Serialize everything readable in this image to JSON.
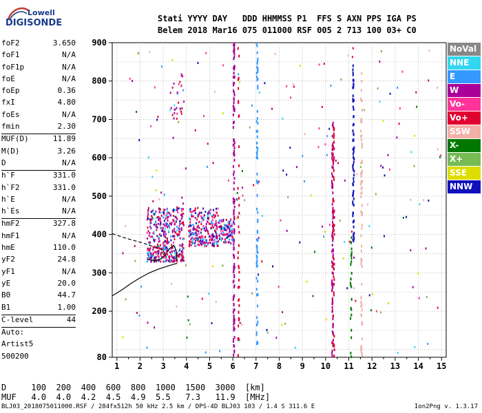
{
  "logo": {
    "line1": "Lowell",
    "line2": "DIGISONDE"
  },
  "header": {
    "labels": "Stati YYYY DAY   DDD HHMMSS P1  FFS S AXN PPS IGA PS",
    "values": "Belem 2018 Mar16 075 011000 RSF 005 2 713 100 03+ C0"
  },
  "params": [
    {
      "label": "foF2",
      "value": "3.650"
    },
    {
      "label": "foF1",
      "value": "N/A"
    },
    {
      "label": "foF1p",
      "value": "N/A"
    },
    {
      "label": "foE",
      "value": "N/A"
    },
    {
      "label": "foEp",
      "value": "0.36"
    },
    {
      "label": "fxI",
      "value": "4.80"
    },
    {
      "label": "foEs",
      "value": "N/A"
    },
    {
      "label": "fmin",
      "value": "2.30"
    },
    {
      "label": "MUF(D)",
      "value": "11.89"
    },
    {
      "label": "M(D)",
      "value": "3.26"
    },
    {
      "label": "D",
      "value": "N/A"
    },
    {
      "label": "h`F",
      "value": "331.0"
    },
    {
      "label": "h`F2",
      "value": "331.0"
    },
    {
      "label": "h`E",
      "value": "N/A"
    },
    {
      "label": "h`Es",
      "value": "N/A"
    },
    {
      "label": "hmF2",
      "value": "327.8"
    },
    {
      "label": "hmF1",
      "value": "N/A"
    },
    {
      "label": "hmE",
      "value": "110.0"
    },
    {
      "label": "yF2",
      "value": "24.8"
    },
    {
      "label": "yF1",
      "value": "N/A"
    },
    {
      "label": "yE",
      "value": "20.0"
    },
    {
      "label": "B0",
      "value": "44.7"
    },
    {
      "label": "B1",
      "value": "1.00"
    },
    {
      "label": "C-level",
      "value": "44"
    },
    {
      "label": "Auto:",
      "value": ""
    },
    {
      "label": "Artist5",
      "value": ""
    },
    {
      "label": "500200",
      "value": ""
    }
  ],
  "legend": [
    {
      "label": "NoVal",
      "color": "#888888"
    },
    {
      "label": "NNE",
      "color": "#33d6f0"
    },
    {
      "label": "E",
      "color": "#3399ff"
    },
    {
      "label": "W",
      "color": "#aa0099"
    },
    {
      "label": "Vo-",
      "color": "#ff3399"
    },
    {
      "label": "Vo+",
      "color": "#e00030"
    },
    {
      "label": "SSW",
      "color": "#f2b0a8"
    },
    {
      "label": "X-",
      "color": "#007700"
    },
    {
      "label": "X+",
      "color": "#77bb55"
    },
    {
      "label": "SSE",
      "color": "#dddd00"
    },
    {
      "label": "NNW",
      "color": "#1111bb"
    }
  ],
  "dmuf": {
    "d_row": "D     100  200  400  600  800  1000  1500  3000  [km]",
    "muf_row": "MUF   4.0  4.0  4.2  4.5  4.9  5.5   7.3   11.9  [MHz]"
  },
  "footer": {
    "left": "BLJ03_2018075011000.RSF / 284fx512h 50 kHz 2.5 km / DPS-4D BLJ03 103 / 1.4 S 311.6 E",
    "right": "Ion2Png v. 1.3.17"
  },
  "chart_data": {
    "type": "scatter",
    "xlim": [
      0.8,
      15.2
    ],
    "ylim": [
      80,
      900
    ],
    "x_ticks": [
      1,
      2,
      3,
      4,
      5,
      6,
      7,
      8,
      9,
      10,
      11,
      12,
      13,
      14,
      15
    ],
    "y_ticks": [
      80,
      200,
      300,
      400,
      500,
      600,
      700,
      800,
      900
    ],
    "grid": true,
    "profile_curve": [
      [
        0.8,
        240
      ],
      [
        1.2,
        255
      ],
      [
        1.6,
        272
      ],
      [
        2.0,
        287
      ],
      [
        2.4,
        300
      ],
      [
        2.8,
        310
      ],
      [
        3.2,
        318
      ],
      [
        3.6,
        325
      ]
    ],
    "profile_dashed": [
      [
        0.8,
        402
      ],
      [
        1.4,
        390
      ],
      [
        2.0,
        380
      ],
      [
        2.6,
        368
      ],
      [
        3.0,
        360
      ]
    ],
    "trace_solid": [
      [
        2.3,
        335
      ],
      [
        2.6,
        332
      ],
      [
        2.9,
        336
      ],
      [
        3.1,
        348
      ],
      [
        3.3,
        365
      ],
      [
        3.45,
        372
      ],
      [
        3.55,
        360
      ],
      [
        3.6,
        330
      ]
    ],
    "echo_clusters": [
      {
        "x": [
          2.3,
          3.9
        ],
        "y": [
          330,
          470
        ],
        "n": 420
      },
      {
        "x": [
          4.1,
          5.4
        ],
        "y": [
          370,
          470
        ],
        "n": 260
      },
      {
        "x": [
          5.4,
          6.0
        ],
        "y": [
          380,
          440
        ],
        "n": 90
      },
      {
        "x": [
          3.3,
          3.9
        ],
        "y": [
          700,
          820
        ],
        "n": 30
      }
    ],
    "echo_columns": [
      {
        "x": 6.05,
        "y": [
          80,
          900
        ],
        "color": "#aa0099",
        "n": 130
      },
      {
        "x": 6.25,
        "y": [
          80,
          900
        ],
        "color": "#e00030",
        "n": 40
      },
      {
        "x": 7.05,
        "y": [
          100,
          900
        ],
        "color": "#3399ff",
        "n": 80
      },
      {
        "x": 10.3,
        "y": [
          80,
          700
        ],
        "color": "#aa0099",
        "n": 90
      },
      {
        "x": 10.35,
        "y": [
          80,
          700
        ],
        "color": "#e00030",
        "n": 50
      },
      {
        "x": 11.2,
        "y": [
          380,
          850
        ],
        "color": "#1111bb",
        "n": 70
      },
      {
        "x": 11.55,
        "y": [
          80,
          830
        ],
        "color": "#f2b0a8",
        "n": 70
      },
      {
        "x": 11.1,
        "y": [
          80,
          400
        ],
        "color": "#007700",
        "n": 25
      }
    ],
    "scattered_points": 220
  }
}
